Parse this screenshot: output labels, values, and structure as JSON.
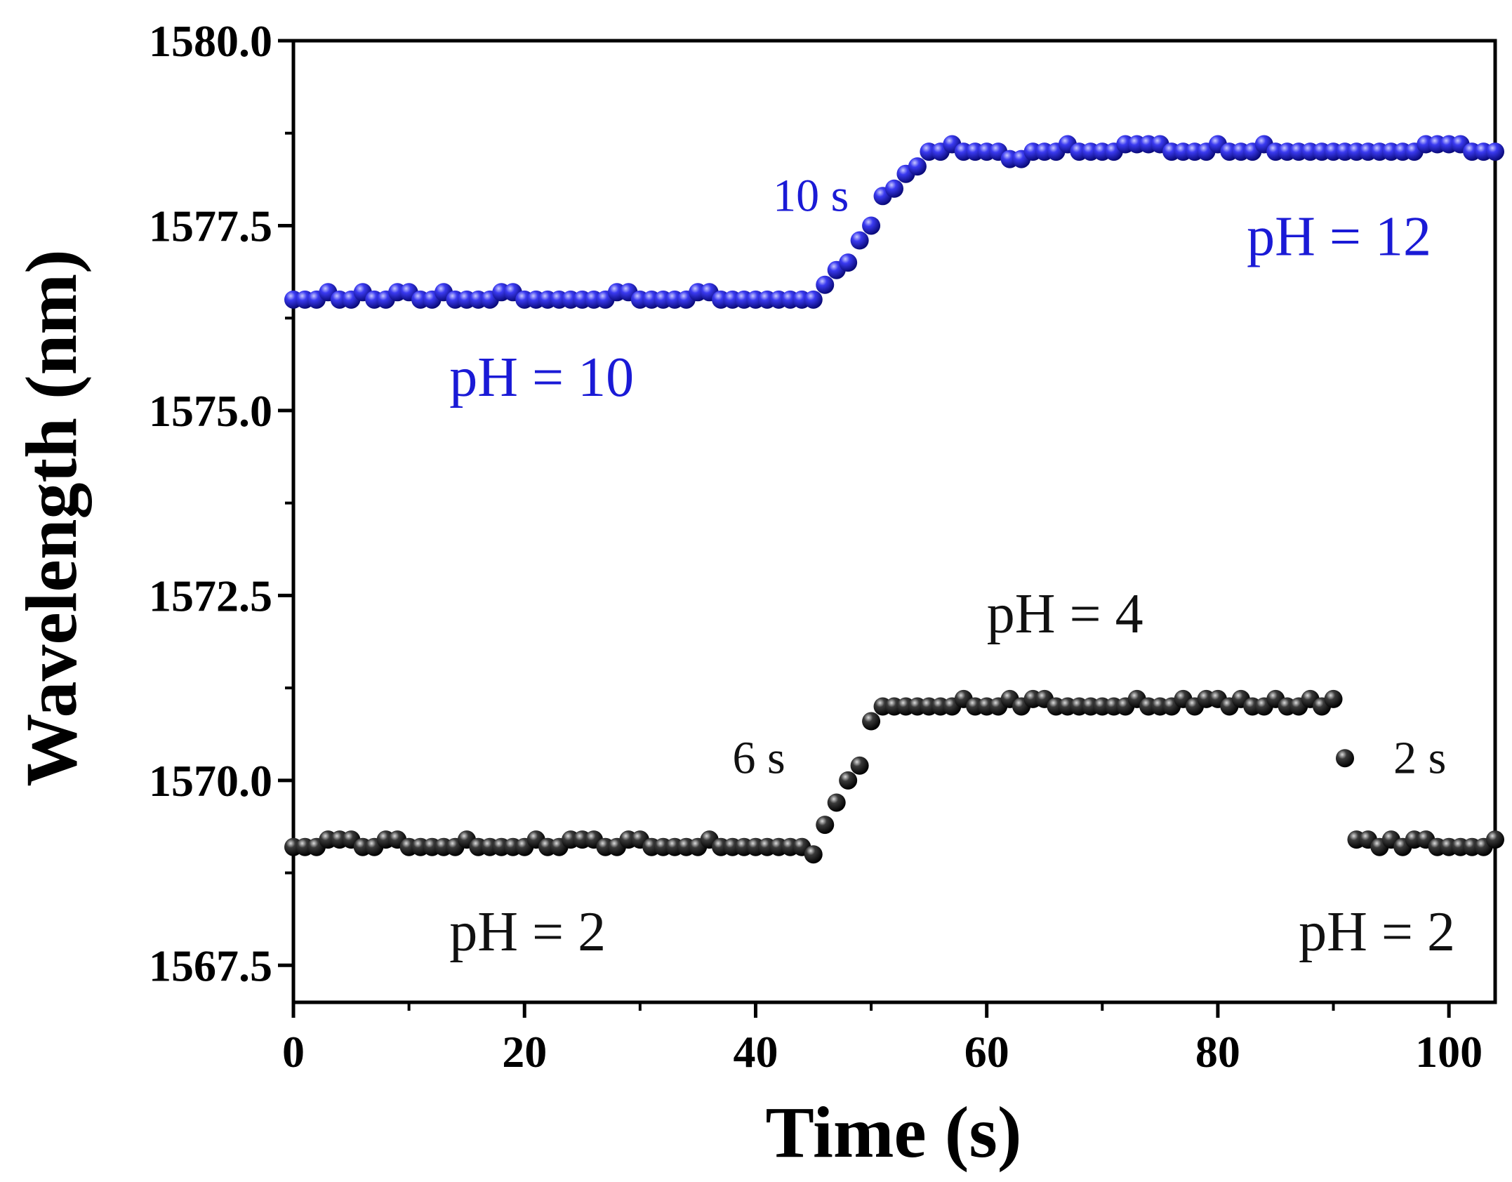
{
  "chart_data": {
    "type": "scatter",
    "title": "",
    "xlabel": "Time (s)",
    "ylabel": "Wavelength (nm)",
    "xlim": [
      0,
      104
    ],
    "ylim": [
      1567.0,
      1580.0
    ],
    "xticks": [
      0,
      20,
      40,
      60,
      80,
      100
    ],
    "xtick_labels": [
      "0",
      "20",
      "40",
      "60",
      "80",
      "100"
    ],
    "yticks": [
      1567.5,
      1570.0,
      1572.5,
      1575.0,
      1577.5,
      1580.0
    ],
    "ytick_labels": [
      "1567.5",
      "1570.0",
      "1572.5",
      "1575.0",
      "1577.5",
      "1580.0"
    ],
    "grid": false,
    "legend": "none",
    "colors": {
      "blue_series": "#1a1adb",
      "black_series": "#1a1a1a",
      "blue_text": "#1a1ad6",
      "black_text": "#111111"
    },
    "series": [
      {
        "name": "pH 10 to pH 12",
        "color": "#1a1adb",
        "x": [
          0,
          1,
          2,
          3,
          4,
          5,
          6,
          7,
          8,
          9,
          10,
          11,
          12,
          13,
          14,
          15,
          16,
          17,
          18,
          19,
          20,
          21,
          22,
          23,
          24,
          25,
          26,
          27,
          28,
          29,
          30,
          31,
          32,
          33,
          34,
          35,
          36,
          37,
          38,
          39,
          40,
          41,
          42,
          43,
          44,
          45,
          46,
          47,
          48,
          49,
          50,
          51,
          52,
          53,
          54,
          55,
          56,
          57,
          58,
          59,
          60,
          61,
          62,
          63,
          64,
          65,
          66,
          67,
          68,
          69,
          70,
          71,
          72,
          73,
          74,
          75,
          76,
          77,
          78,
          79,
          80,
          81,
          82,
          83,
          84,
          85,
          86,
          87,
          88,
          89,
          90,
          91,
          92,
          93,
          94,
          95,
          96,
          97,
          98,
          99,
          100,
          101,
          102,
          103,
          104
        ],
        "y": [
          1576.5,
          1576.5,
          1576.5,
          1576.6,
          1576.5,
          1576.5,
          1576.6,
          1576.5,
          1576.5,
          1576.6,
          1576.6,
          1576.5,
          1576.5,
          1576.6,
          1576.5,
          1576.5,
          1576.5,
          1576.5,
          1576.6,
          1576.6,
          1576.5,
          1576.5,
          1576.5,
          1576.5,
          1576.5,
          1576.5,
          1576.5,
          1576.5,
          1576.6,
          1576.6,
          1576.5,
          1576.5,
          1576.5,
          1576.5,
          1576.5,
          1576.6,
          1576.6,
          1576.5,
          1576.5,
          1576.5,
          1576.5,
          1576.5,
          1576.5,
          1576.5,
          1576.5,
          1576.5,
          1576.7,
          1576.9,
          1577.0,
          1577.3,
          1577.5,
          1577.9,
          1578.0,
          1578.2,
          1578.3,
          1578.5,
          1578.5,
          1578.6,
          1578.5,
          1578.5,
          1578.5,
          1578.5,
          1578.4,
          1578.4,
          1578.5,
          1578.5,
          1578.5,
          1578.6,
          1578.5,
          1578.5,
          1578.5,
          1578.5,
          1578.6,
          1578.6,
          1578.6,
          1578.6,
          1578.5,
          1578.5,
          1578.5,
          1578.5,
          1578.6,
          1578.5,
          1578.5,
          1578.5,
          1578.6,
          1578.5,
          1578.5,
          1578.5,
          1578.5,
          1578.5,
          1578.5,
          1578.5,
          1578.5,
          1578.5,
          1578.5,
          1578.5,
          1578.5,
          1578.5,
          1578.6,
          1578.6,
          1578.6,
          1578.6,
          1578.5,
          1578.5,
          1578.5
        ]
      },
      {
        "name": "pH 2 to pH 4 to pH 2",
        "color": "#1a1a1a",
        "x": [
          0,
          1,
          2,
          3,
          4,
          5,
          6,
          7,
          8,
          9,
          10,
          11,
          12,
          13,
          14,
          15,
          16,
          17,
          18,
          19,
          20,
          21,
          22,
          23,
          24,
          25,
          26,
          27,
          28,
          29,
          30,
          31,
          32,
          33,
          34,
          35,
          36,
          37,
          38,
          39,
          40,
          41,
          42,
          43,
          44,
          45,
          46,
          47,
          48,
          49,
          50,
          51,
          52,
          53,
          54,
          55,
          56,
          57,
          58,
          59,
          60,
          61,
          62,
          63,
          64,
          65,
          66,
          67,
          68,
          69,
          70,
          71,
          72,
          73,
          74,
          75,
          76,
          77,
          78,
          79,
          80,
          81,
          82,
          83,
          84,
          85,
          86,
          87,
          88,
          89,
          90,
          91,
          92,
          93,
          94,
          95,
          96,
          97,
          98,
          99,
          100,
          101,
          102,
          103,
          104
        ],
        "y": [
          1569.1,
          1569.1,
          1569.1,
          1569.2,
          1569.2,
          1569.2,
          1569.1,
          1569.1,
          1569.2,
          1569.2,
          1569.1,
          1569.1,
          1569.1,
          1569.1,
          1569.1,
          1569.2,
          1569.1,
          1569.1,
          1569.1,
          1569.1,
          1569.1,
          1569.2,
          1569.1,
          1569.1,
          1569.2,
          1569.2,
          1569.2,
          1569.1,
          1569.1,
          1569.2,
          1569.2,
          1569.1,
          1569.1,
          1569.1,
          1569.1,
          1569.1,
          1569.2,
          1569.1,
          1569.1,
          1569.1,
          1569.1,
          1569.1,
          1569.1,
          1569.1,
          1569.1,
          1569.0,
          1569.4,
          1569.7,
          1570.0,
          1570.2,
          1570.8,
          1571.0,
          1571.0,
          1571.0,
          1571.0,
          1571.0,
          1571.0,
          1571.0,
          1571.1,
          1571.0,
          1571.0,
          1571.0,
          1571.1,
          1571.0,
          1571.1,
          1571.1,
          1571.0,
          1571.0,
          1571.0,
          1571.0,
          1571.0,
          1571.0,
          1571.0,
          1571.1,
          1571.0,
          1571.0,
          1571.0,
          1571.1,
          1571.0,
          1571.1,
          1571.1,
          1571.0,
          1571.1,
          1571.0,
          1571.0,
          1571.1,
          1571.0,
          1571.0,
          1571.1,
          1571.0,
          1571.1,
          1570.3,
          1569.2,
          1569.2,
          1569.1,
          1569.2,
          1569.1,
          1569.2,
          1569.2,
          1569.1,
          1569.1,
          1569.1,
          1569.1,
          1569.1,
          1569.2
        ]
      }
    ],
    "annotations": [
      {
        "text": "10 s",
        "x": 41.5,
        "y": 1577.7,
        "color": "#1a1ad6",
        "size": "small"
      },
      {
        "text": "pH = 12",
        "x": 82.5,
        "y": 1577.1,
        "color": "#1a1ad6",
        "size": "large"
      },
      {
        "text": "pH = 10",
        "x": 13.5,
        "y": 1575.2,
        "color": "#1a1ad6",
        "size": "large"
      },
      {
        "text": "pH = 4",
        "x": 60.0,
        "y": 1572.0,
        "color": "#111111",
        "size": "large"
      },
      {
        "text": "6 s",
        "x": 38.0,
        "y": 1570.1,
        "color": "#111111",
        "size": "small"
      },
      {
        "text": "2 s",
        "x": 95.2,
        "y": 1570.1,
        "color": "#111111",
        "size": "small"
      },
      {
        "text": "pH = 2",
        "x": 13.5,
        "y": 1567.7,
        "color": "#111111",
        "size": "large"
      },
      {
        "text": "pH = 2",
        "x": 87.0,
        "y": 1567.7,
        "color": "#111111",
        "size": "large"
      }
    ]
  }
}
